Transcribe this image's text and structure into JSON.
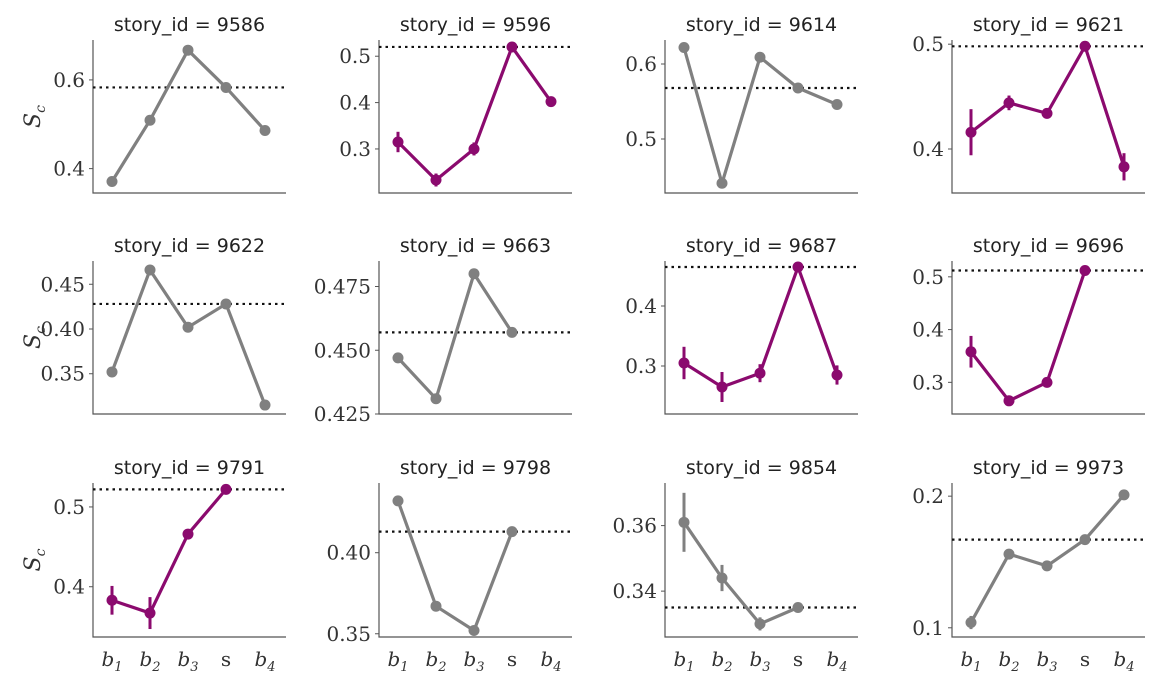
{
  "colors": {
    "gray": "#808080",
    "purple": "#8b0a6e"
  },
  "chart_data": [
    {
      "type": "line",
      "title": "story_id = 9586",
      "categories": [
        "b1",
        "b2",
        "b3",
        "s",
        "b4"
      ],
      "series": [
        {
          "values": [
            0.371,
            0.509,
            0.667,
            0.583,
            0.486
          ],
          "err": [
            0.003,
            0.003,
            0.003,
            0.003,
            0.003
          ]
        }
      ],
      "reference": 0.583,
      "ylim": [
        0.345,
        0.69
      ],
      "yticks": [
        0.4,
        0.6
      ],
      "ytick_labels": [
        "0.4",
        "0.6"
      ],
      "highlight": false,
      "ylabel": "S_c"
    },
    {
      "type": "line",
      "title": "story_id = 9596",
      "categories": [
        "b1",
        "b2",
        "b3",
        "s",
        "b4"
      ],
      "series": [
        {
          "values": [
            0.315,
            0.233,
            0.3,
            0.52,
            0.402
          ],
          "err": [
            0.022,
            0.014,
            0.014,
            0.005,
            0.005
          ]
        }
      ],
      "reference": 0.52,
      "ylim": [
        0.205,
        0.535
      ],
      "yticks": [
        0.3,
        0.4,
        0.5
      ],
      "ytick_labels": [
        "0.3",
        "0.4",
        "0.5"
      ],
      "highlight": true,
      "ylabel": ""
    },
    {
      "type": "line",
      "title": "story_id = 9614",
      "categories": [
        "b1",
        "b2",
        "b3",
        "s",
        "b4"
      ],
      "series": [
        {
          "values": [
            0.622,
            0.441,
            0.609,
            0.568,
            0.546
          ],
          "err": [
            0.004,
            0.004,
            0.004,
            0.004,
            0.004
          ]
        }
      ],
      "reference": 0.568,
      "ylim": [
        0.428,
        0.632
      ],
      "yticks": [
        0.5,
        0.6
      ],
      "ytick_labels": [
        "0.5",
        "0.6"
      ],
      "highlight": false,
      "ylabel": ""
    },
    {
      "type": "line",
      "title": "story_id = 9621",
      "categories": [
        "b1",
        "b2",
        "b3",
        "s",
        "b4"
      ],
      "series": [
        {
          "values": [
            0.416,
            0.444,
            0.434,
            0.498,
            0.383
          ],
          "err": [
            0.022,
            0.007,
            0.005,
            0.003,
            0.013
          ]
        }
      ],
      "reference": 0.498,
      "ylim": [
        0.358,
        0.504
      ],
      "yticks": [
        0.4,
        0.5
      ],
      "ytick_labels": [
        "0.4",
        "0.5"
      ],
      "highlight": true,
      "ylabel": ""
    },
    {
      "type": "line",
      "title": "story_id = 9622",
      "categories": [
        "b1",
        "b2",
        "b3",
        "s",
        "b4"
      ],
      "series": [
        {
          "values": [
            0.352,
            0.466,
            0.402,
            0.428,
            0.315
          ],
          "err": [
            0.002,
            0.002,
            0.002,
            0.002,
            0.002
          ]
        }
      ],
      "reference": 0.428,
      "ylim": [
        0.305,
        0.476
      ],
      "yticks": [
        0.35,
        0.4,
        0.45
      ],
      "ytick_labels": [
        "0.35",
        "0.40",
        "0.45"
      ],
      "highlight": false,
      "ylabel": "S_c"
    },
    {
      "type": "line",
      "title": "story_id = 9663",
      "categories": [
        "b1",
        "b2",
        "b3",
        "s",
        "b4"
      ],
      "series": [
        {
          "values": [
            0.447,
            0.431,
            0.48,
            0.457,
            null
          ],
          "err": [
            0.0015,
            0.0015,
            0.0012,
            0.0008,
            0
          ]
        }
      ],
      "reference": 0.457,
      "ylim": [
        0.425,
        0.485
      ],
      "yticks": [
        0.425,
        0.45,
        0.475
      ],
      "ytick_labels": [
        "0.425",
        "0.450",
        "0.475"
      ],
      "highlight": false,
      "ylabel": ""
    },
    {
      "type": "line",
      "title": "story_id = 9687",
      "categories": [
        "b1",
        "b2",
        "b3",
        "s",
        "b4"
      ],
      "series": [
        {
          "values": [
            0.305,
            0.265,
            0.288,
            0.465,
            0.285
          ],
          "err": [
            0.027,
            0.025,
            0.015,
            0.005,
            0.016
          ]
        }
      ],
      "reference": 0.465,
      "ylim": [
        0.22,
        0.475
      ],
      "yticks": [
        0.3,
        0.4
      ],
      "ytick_labels": [
        "0.3",
        "0.4"
      ],
      "highlight": true,
      "ylabel": ""
    },
    {
      "type": "line",
      "title": "story_id = 9696",
      "categories": [
        "b1",
        "b2",
        "b3",
        "s",
        "b4"
      ],
      "series": [
        {
          "values": [
            0.358,
            0.265,
            0.3,
            0.512,
            null
          ],
          "err": [
            0.03,
            0.01,
            0.005,
            0.003,
            0
          ]
        }
      ],
      "reference": 0.512,
      "ylim": [
        0.24,
        0.53
      ],
      "yticks": [
        0.3,
        0.4,
        0.5
      ],
      "ytick_labels": [
        "0.3",
        "0.4",
        "0.5"
      ],
      "highlight": true,
      "ylabel": ""
    },
    {
      "type": "line",
      "title": "story_id = 9791",
      "categories": [
        "b1",
        "b2",
        "b3",
        "s",
        "b4"
      ],
      "series": [
        {
          "values": [
            0.383,
            0.367,
            0.466,
            0.522,
            null
          ],
          "err": [
            0.018,
            0.02,
            0.005,
            0.003,
            0
          ]
        }
      ],
      "reference": 0.522,
      "ylim": [
        0.337,
        0.53
      ],
      "yticks": [
        0.4,
        0.5
      ],
      "ytick_labels": [
        "0.4",
        "0.5"
      ],
      "highlight": true,
      "ylabel": "S_c"
    },
    {
      "type": "line",
      "title": "story_id = 9798",
      "categories": [
        "b1",
        "b2",
        "b3",
        "s",
        "b4"
      ],
      "series": [
        {
          "values": [
            0.432,
            0.367,
            0.352,
            0.413,
            null
          ],
          "err": [
            0.003,
            0.002,
            0.002,
            0.002,
            0
          ]
        }
      ],
      "reference": 0.413,
      "ylim": [
        0.348,
        0.443
      ],
      "yticks": [
        0.35,
        0.4
      ],
      "ytick_labels": [
        "0.35",
        "0.40"
      ],
      "highlight": false,
      "ylabel": ""
    },
    {
      "type": "line",
      "title": "story_id = 9854",
      "categories": [
        "b1",
        "b2",
        "b3",
        "s",
        "b4"
      ],
      "series": [
        {
          "values": [
            0.361,
            0.344,
            0.33,
            0.335,
            null
          ],
          "err": [
            0.009,
            0.004,
            0.002,
            0.001,
            0
          ]
        }
      ],
      "reference": 0.335,
      "ylim": [
        0.326,
        0.373
      ],
      "yticks": [
        0.34,
        0.36
      ],
      "ytick_labels": [
        "0.34",
        "0.36"
      ],
      "highlight": false,
      "ylabel": ""
    },
    {
      "type": "line",
      "title": "story_id = 9973",
      "categories": [
        "b1",
        "b2",
        "b3",
        "s",
        "b4"
      ],
      "series": [
        {
          "values": [
            0.104,
            0.156,
            0.147,
            0.167,
            0.201
          ],
          "err": [
            0.005,
            0.002,
            0.002,
            0.002,
            0.002
          ]
        }
      ],
      "reference": 0.167,
      "ylim": [
        0.093,
        0.21
      ],
      "yticks": [
        0.1,
        0.2
      ],
      "ytick_labels": [
        "0.1",
        "0.2"
      ],
      "highlight": false,
      "ylabel": ""
    }
  ]
}
